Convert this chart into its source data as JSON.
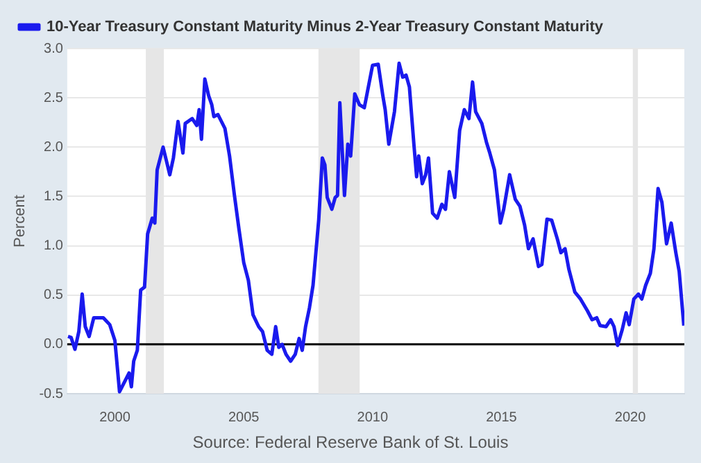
{
  "chart_data": {
    "type": "line",
    "ylabel": "Percent",
    "annotations": [
      "Source: Federal Reserve Bank of St. Louis"
    ],
    "legend": "top",
    "grid": "y",
    "marker": "none",
    "line_style": "solid",
    "xlim": [
      1998.15,
      2022.1
    ],
    "xticks": [
      2000,
      2005,
      2010,
      2015,
      2020
    ],
    "ylim": [
      -0.5,
      3.0
    ],
    "yticks": [
      -0.5,
      {
        "value": 0,
        "label": "0.0"
      },
      0.5,
      {
        "value": 1,
        "label": "1.0"
      },
      1.5,
      {
        "value": 2,
        "label": "2.0"
      },
      2.5,
      {
        "value": 3,
        "label": "3.0"
      }
    ],
    "bands": [
      {
        "axis": "x",
        "from": 2001.2,
        "to": 2001.9,
        "color": "#e6e6e6"
      },
      {
        "axis": "x",
        "from": 2007.9,
        "to": 2009.5,
        "color": "#e6e6e6"
      },
      {
        "axis": "x",
        "from": 2020.1,
        "to": 2020.3,
        "color": "#e6e6e6"
      }
    ],
    "ref_lines": [
      {
        "axis": "y",
        "value": 0,
        "color": "#000000"
      }
    ],
    "series": [
      {
        "name": "10-Year Treasury Constant Maturity Minus 2-Year Treasury Constant Maturity",
        "color": "#1a1aee",
        "x": [
          1998.18,
          1998.3,
          1998.45,
          1998.6,
          1998.73,
          1998.85,
          1999.0,
          1999.18,
          1999.55,
          1999.8,
          2000.0,
          2000.18,
          2000.55,
          2000.64,
          2000.73,
          2000.87,
          2001.0,
          2001.15,
          2001.27,
          2001.45,
          2001.55,
          2001.64,
          2001.87,
          2002.13,
          2002.27,
          2002.45,
          2002.64,
          2002.73,
          2003.0,
          2003.18,
          2003.27,
          2003.36,
          2003.49,
          2003.64,
          2003.76,
          2003.84,
          2004.0,
          2004.27,
          2004.45,
          2004.64,
          2004.82,
          2005.0,
          2005.18,
          2005.36,
          2005.58,
          2005.73,
          2005.91,
          2006.09,
          2006.24,
          2006.36,
          2006.49,
          2006.64,
          2006.82,
          2007.0,
          2007.15,
          2007.27,
          2007.4,
          2007.55,
          2007.69,
          2007.8,
          2007.91,
          2008.05,
          2008.15,
          2008.24,
          2008.42,
          2008.55,
          2008.64,
          2008.73,
          2008.91,
          2009.04,
          2009.15,
          2009.31,
          2009.49,
          2009.68,
          2009.77,
          2010.0,
          2010.22,
          2010.4,
          2010.49,
          2010.63,
          2010.85,
          2011.03,
          2011.17,
          2011.3,
          2011.43,
          2011.61,
          2011.71,
          2011.79,
          2011.93,
          2012.06,
          2012.17,
          2012.33,
          2012.51,
          2012.69,
          2012.83,
          2012.98,
          2013.19,
          2013.38,
          2013.56,
          2013.74,
          2013.88,
          2014.0,
          2014.24,
          2014.42,
          2014.55,
          2014.73,
          2014.96,
          2015.09,
          2015.32,
          2015.54,
          2015.72,
          2015.9,
          2016.05,
          2016.23,
          2016.44,
          2016.57,
          2016.77,
          2016.95,
          2017.17,
          2017.31,
          2017.47,
          2017.62,
          2017.85,
          2018.07,
          2018.34,
          2018.52,
          2018.7,
          2018.83,
          2019.06,
          2019.24,
          2019.37,
          2019.51,
          2019.69,
          2019.84,
          2019.96,
          2020.14,
          2020.32,
          2020.45,
          2020.6,
          2020.78,
          2020.92,
          2021.08,
          2021.23,
          2021.41,
          2021.59,
          2021.77,
          2021.9,
          2022.08
        ],
        "values": [
          0.08,
          0.07,
          -0.05,
          0.13,
          0.51,
          0.18,
          0.08,
          0.27,
          0.27,
          0.2,
          0.04,
          -0.48,
          -0.29,
          -0.43,
          -0.17,
          -0.06,
          0.55,
          0.58,
          1.12,
          1.28,
          1.23,
          1.77,
          2.0,
          1.72,
          1.89,
          2.26,
          1.94,
          2.24,
          2.29,
          2.22,
          2.38,
          2.08,
          2.69,
          2.52,
          2.43,
          2.31,
          2.33,
          2.19,
          1.91,
          1.51,
          1.16,
          0.83,
          0.65,
          0.3,
          0.18,
          0.13,
          -0.06,
          -0.1,
          0.18,
          -0.03,
          0.0,
          -0.1,
          -0.17,
          -0.1,
          0.06,
          -0.06,
          0.18,
          0.37,
          0.6,
          0.93,
          1.26,
          1.89,
          1.82,
          1.49,
          1.37,
          1.49,
          1.51,
          2.45,
          1.51,
          2.03,
          1.91,
          2.54,
          2.43,
          2.4,
          2.52,
          2.83,
          2.84,
          2.52,
          2.38,
          2.03,
          2.36,
          2.85,
          2.71,
          2.73,
          2.61,
          2.01,
          1.7,
          1.91,
          1.63,
          1.72,
          1.89,
          1.33,
          1.28,
          1.42,
          1.37,
          1.75,
          1.49,
          2.17,
          2.38,
          2.29,
          2.66,
          2.36,
          2.24,
          2.05,
          1.94,
          1.77,
          1.23,
          1.37,
          1.72,
          1.47,
          1.4,
          1.21,
          0.97,
          1.07,
          0.79,
          0.81,
          1.27,
          1.26,
          1.07,
          0.93,
          0.97,
          0.76,
          0.53,
          0.46,
          0.34,
          0.25,
          0.27,
          0.19,
          0.18,
          0.25,
          0.18,
          -0.01,
          0.15,
          0.32,
          0.2,
          0.46,
          0.51,
          0.46,
          0.6,
          0.72,
          0.97,
          1.58,
          1.44,
          1.02,
          1.23,
          0.93,
          0.74,
          0.19
        ]
      }
    ]
  }
}
